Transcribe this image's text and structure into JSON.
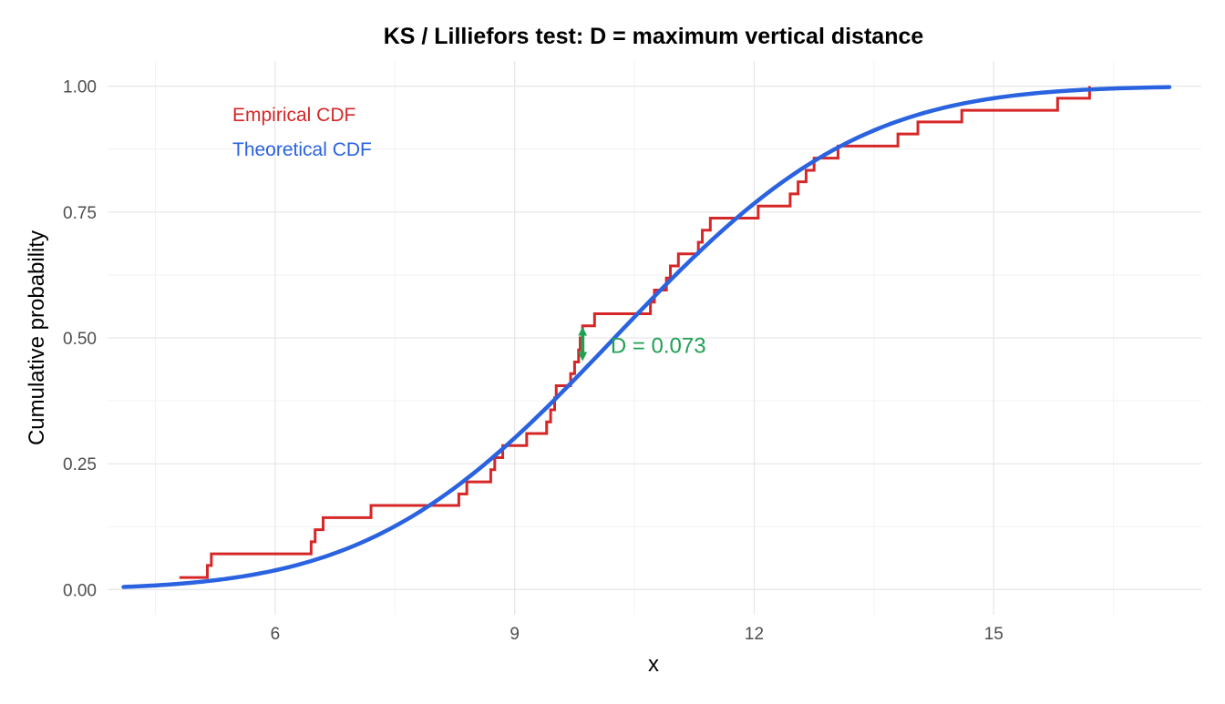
{
  "chart_data": {
    "type": "line",
    "title": "KS / Lilliefors test: D = maximum vertical distance",
    "xlabel": "x",
    "ylabel": "Cumulative probability",
    "xlim": [
      3.9,
      17.6
    ],
    "ylim": [
      -0.05,
      1.05
    ],
    "x_ticks": [
      6,
      9,
      12,
      15
    ],
    "x_tick_labels": [
      "6",
      "9",
      "12",
      "15"
    ],
    "x_minor_ticks": [
      4.5,
      7.5,
      10.5,
      13.5,
      16.5
    ],
    "y_ticks": [
      0,
      0.25,
      0.5,
      0.75,
      1
    ],
    "y_tick_labels": [
      "0.00",
      "0.25",
      "0.50",
      "0.75",
      "1.00"
    ],
    "y_minor_ticks": [
      0.125,
      0.375,
      0.625,
      0.875
    ],
    "grid": true,
    "legend_position": "top-left",
    "legend": [
      {
        "label": "Empirical CDF",
        "color": "#d62728"
      },
      {
        "label": "Theoretical CDF",
        "color": "#2a62e0"
      }
    ],
    "series": [
      {
        "name": "Empirical CDF",
        "kind": "step",
        "color": "#d62728",
        "x_start": 4.8,
        "x_end": 16.2,
        "steps": [
          [
            4.8,
            0.024
          ],
          [
            5.15,
            0.048
          ],
          [
            5.2,
            0.071
          ],
          [
            6.45,
            0.095
          ],
          [
            6.5,
            0.119
          ],
          [
            6.6,
            0.143
          ],
          [
            7.2,
            0.167
          ],
          [
            8.3,
            0.19
          ],
          [
            8.4,
            0.214
          ],
          [
            8.7,
            0.238
          ],
          [
            8.75,
            0.262
          ],
          [
            8.85,
            0.286
          ],
          [
            9.15,
            0.31
          ],
          [
            9.4,
            0.333
          ],
          [
            9.45,
            0.357
          ],
          [
            9.5,
            0.381
          ],
          [
            9.52,
            0.405
          ],
          [
            9.7,
            0.429
          ],
          [
            9.75,
            0.452
          ],
          [
            9.8,
            0.476
          ],
          [
            9.82,
            0.5
          ],
          [
            9.85,
            0.524
          ],
          [
            10.0,
            0.548
          ],
          [
            10.7,
            0.571
          ],
          [
            10.75,
            0.595
          ],
          [
            10.9,
            0.619
          ],
          [
            10.95,
            0.643
          ],
          [
            11.05,
            0.667
          ],
          [
            11.3,
            0.69
          ],
          [
            11.35,
            0.714
          ],
          [
            11.45,
            0.738
          ],
          [
            12.05,
            0.762
          ],
          [
            12.45,
            0.786
          ],
          [
            12.55,
            0.81
          ],
          [
            12.65,
            0.833
          ],
          [
            12.75,
            0.857
          ],
          [
            13.05,
            0.881
          ],
          [
            13.8,
            0.905
          ],
          [
            14.05,
            0.929
          ],
          [
            14.6,
            0.952
          ],
          [
            15.8,
            0.976
          ],
          [
            16.2,
            1.0
          ]
        ]
      },
      {
        "name": "Theoretical CDF",
        "kind": "normal_cdf",
        "color": "#2a62e0",
        "mean": 10.25,
        "sd": 2.4,
        "x_range": [
          4.1,
          17.2
        ]
      }
    ],
    "annotations": [
      {
        "type": "double-arrow",
        "x": 9.85,
        "y_from": 0.452,
        "y_to": 0.524,
        "color": "#1fa055"
      },
      {
        "type": "text",
        "text": "D = 0.073",
        "x": 10.2,
        "y": 0.485,
        "color": "#1fa055"
      }
    ]
  }
}
